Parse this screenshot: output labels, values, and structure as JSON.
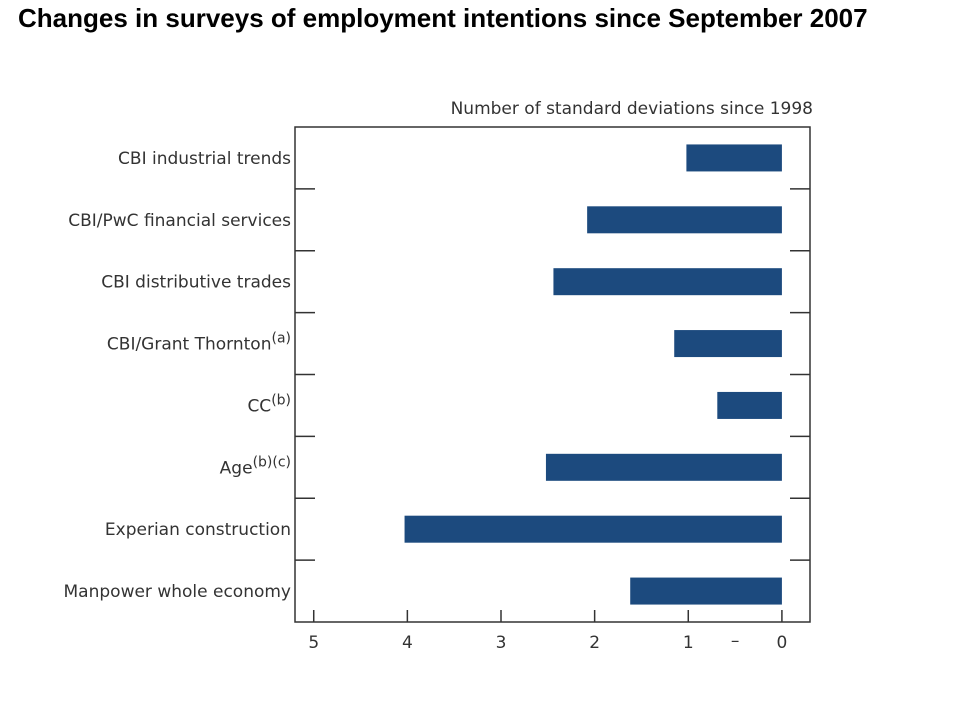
{
  "slide": {
    "title": "Changes in surveys of employment intentions since September 2007"
  },
  "chart_data": {
    "type": "bar",
    "orientation": "horizontal",
    "unit_label": "Number of standard deviations since 1998",
    "categories": [
      {
        "label": "CBI industrial trends",
        "note": ""
      },
      {
        "label": "CBI/PwC financial services",
        "note": ""
      },
      {
        "label": "CBI distributive trades",
        "note": ""
      },
      {
        "label": "CBI/Grant Thornton",
        "note": "(a)"
      },
      {
        "label": "CC",
        "note": "(b)"
      },
      {
        "label": "Age",
        "note": "(b)(c)"
      },
      {
        "label": "Experian construction",
        "note": ""
      },
      {
        "label": "Manpower whole economy",
        "note": ""
      }
    ],
    "values": [
      -1.02,
      -2.08,
      -2.44,
      -1.15,
      -0.69,
      -2.52,
      -4.03,
      -1.62
    ],
    "x_axis": {
      "range": [
        -5.2,
        0.3
      ],
      "reversed": true,
      "tick_values": [
        -5,
        -4,
        -3,
        -2,
        -1,
        0
      ],
      "tick_labels": [
        "5",
        "4",
        "3",
        "2",
        "1",
        "0"
      ],
      "minus_sign": "–"
    },
    "bar_color": "#1c4a7e",
    "grid": false,
    "legend": "none"
  }
}
